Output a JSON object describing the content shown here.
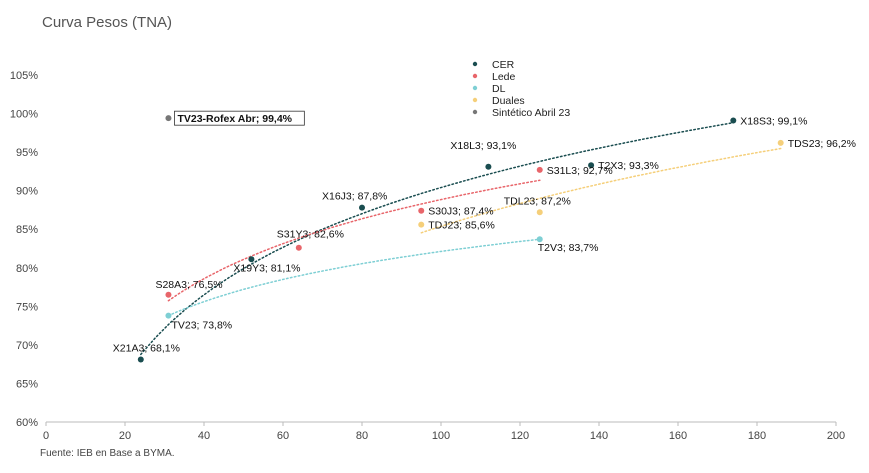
{
  "title": "Curva Pesos (TNA)",
  "source": "Fuente: IEB en Base a BYMA.",
  "chart_data": {
    "type": "scatter",
    "title": "Curva Pesos (TNA)",
    "xlabel": "",
    "ylabel": "",
    "xlim": [
      0,
      200
    ],
    "ylim": [
      60,
      105
    ],
    "x_ticks": [
      0,
      20,
      40,
      60,
      80,
      100,
      120,
      140,
      160,
      180,
      200
    ],
    "y_ticks": [
      60,
      65,
      70,
      75,
      80,
      85,
      90,
      95,
      100,
      105
    ],
    "y_tick_suffix": "%",
    "grid": false,
    "legend_position": "top-center",
    "series": [
      {
        "name": "CER",
        "color": "#1a4d50",
        "trendline": true,
        "points": [
          {
            "label": "X21A3; 68,1%",
            "x": 24,
            "y": 68.1
          },
          {
            "label": "X19Y3; 81,1%",
            "x": 52,
            "y": 81.1
          },
          {
            "label": "X16J3; 87,8%",
            "x": 80,
            "y": 87.8
          },
          {
            "label": "X18L3; 93,1%",
            "x": 112,
            "y": 93.1
          },
          {
            "label": "T2X3; 93,3%",
            "x": 138,
            "y": 93.3
          },
          {
            "label": "X18S3; 99,1%",
            "x": 174,
            "y": 99.1
          }
        ]
      },
      {
        "name": "Lede",
        "color": "#e8656a",
        "trendline": true,
        "points": [
          {
            "label": "S28A3; 76,5%",
            "x": 31,
            "y": 76.5
          },
          {
            "label": "S31Y3; 82,6%",
            "x": 64,
            "y": 82.6
          },
          {
            "label": "S30J3; 87,4%",
            "x": 95,
            "y": 87.4
          },
          {
            "label": "S31L3; 92,7%",
            "x": 125,
            "y": 92.7
          }
        ]
      },
      {
        "name": "DL",
        "color": "#7ecfd4",
        "trendline": true,
        "points": [
          {
            "label": "TV23; 73,8%",
            "x": 31,
            "y": 73.8
          },
          {
            "label": "T2V3; 83,7%",
            "x": 125,
            "y": 83.7
          }
        ]
      },
      {
        "name": "Duales",
        "color": "#f5cf7a",
        "trendline": true,
        "points": [
          {
            "label": "TDJ23; 85,6%",
            "x": 95,
            "y": 85.6
          },
          {
            "label": "TDL23; 87,2%",
            "x": 125,
            "y": 87.2
          },
          {
            "label": "TDS23; 96,2%",
            "x": 186,
            "y": 96.2
          }
        ]
      },
      {
        "name": "Sintético Abril 23",
        "color": "#777777",
        "trendline": false,
        "points": [
          {
            "label": "TV23-Rofex Abr; 99,4%",
            "x": 31,
            "y": 99.4
          }
        ]
      }
    ]
  }
}
